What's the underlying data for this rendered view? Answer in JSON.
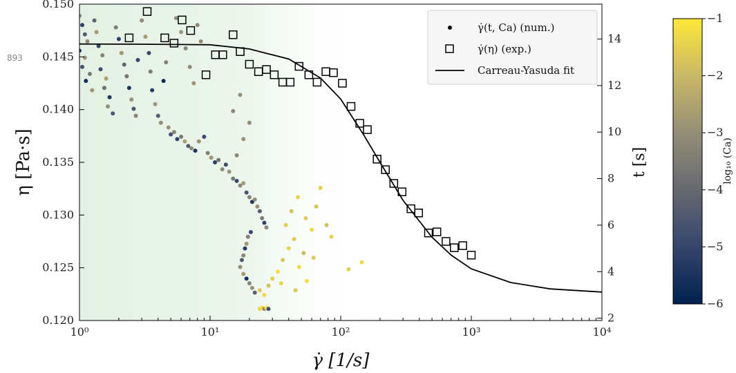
{
  "margin_label": "893",
  "chart_data": {
    "type": "scatter",
    "x_axis": {
      "label": "γ̇ [1/s]",
      "scale": "log",
      "range": [
        1,
        10000
      ],
      "ticks": [
        1,
        10,
        100,
        1000,
        10000
      ],
      "tick_labels": [
        "10⁰",
        "10¹",
        "10²",
        "10³",
        "10⁴"
      ]
    },
    "y_axis": {
      "label": "η [Pa·s]",
      "range": [
        0.12,
        0.15
      ],
      "ticks": [
        0.12,
        0.125,
        0.13,
        0.135,
        0.14,
        0.145,
        0.15
      ],
      "tick_labels": [
        "0.120",
        "0.125",
        "0.130",
        "0.135",
        "0.140",
        "0.145",
        "0.150"
      ]
    },
    "y2_axis": {
      "label": "t [s]",
      "range": [
        1.9,
        15.5
      ],
      "ticks": [
        2,
        4,
        6,
        8,
        10,
        12,
        14
      ],
      "tick_labels": [
        "2",
        "4",
        "6",
        "8",
        "10",
        "12",
        "14"
      ]
    },
    "colorbar": {
      "label": "log₁₀ (Ca)",
      "range": [
        -6,
        -1
      ],
      "ticks": [
        -6,
        -5,
        -4,
        -3,
        -2,
        -1
      ],
      "tick_labels": [
        "−6",
        "−5",
        "−4",
        "−3",
        "−2",
        "−1"
      ],
      "colors": [
        "#00224e",
        "#35456c",
        "#666970",
        "#948e77",
        "#c8b866",
        "#fee838"
      ]
    },
    "legend": {
      "position": "top-right",
      "entries": [
        {
          "marker": "dot",
          "label": "γ̇(t, Ca) (num.)"
        },
        {
          "marker": "square",
          "label": "γ̇(η) (exp.)"
        },
        {
          "marker": "line",
          "label": "Carreau-Yasuda fit"
        }
      ]
    },
    "shaded_region": {
      "x_range": [
        1,
        150
      ],
      "color": "#e6f3e6"
    },
    "series": [
      {
        "name": "γ̇(η) (exp.)",
        "kind": "square",
        "axis": "left",
        "points": [
          [
            2.4,
            0.1468
          ],
          [
            3.3,
            0.1493
          ],
          [
            4.5,
            0.1468
          ],
          [
            5.3,
            0.1463
          ],
          [
            6.1,
            0.1485
          ],
          [
            7.1,
            0.1475
          ],
          [
            9.3,
            0.1433
          ],
          [
            11,
            0.1452
          ],
          [
            12.5,
            0.1452
          ],
          [
            15,
            0.1471
          ],
          [
            17,
            0.1455
          ],
          [
            20,
            0.1443
          ],
          [
            23.5,
            0.1436
          ],
          [
            27,
            0.1438
          ],
          [
            31,
            0.1433
          ],
          [
            36,
            0.1426
          ],
          [
            41,
            0.1426
          ],
          [
            48,
            0.1441
          ],
          [
            57,
            0.1433
          ],
          [
            66,
            0.1426
          ],
          [
            77,
            0.1436
          ],
          [
            88,
            0.1435
          ],
          [
            103,
            0.1425
          ],
          [
            120,
            0.1403
          ],
          [
            140,
            0.1387
          ],
          [
            160,
            0.1381
          ],
          [
            190,
            0.1353
          ],
          [
            220,
            0.1343
          ],
          [
            255,
            0.133
          ],
          [
            295,
            0.1322
          ],
          [
            345,
            0.1306
          ],
          [
            395,
            0.1302
          ],
          [
            470,
            0.1283
          ],
          [
            545,
            0.1284
          ],
          [
            640,
            0.1275
          ],
          [
            740,
            0.1269
          ],
          [
            860,
            0.1271
          ],
          [
            1000,
            0.1262
          ]
        ]
      },
      {
        "name": "Carreau-Yasuda fit",
        "kind": "line",
        "axis": "left",
        "points": [
          [
            1,
            0.14622
          ],
          [
            3,
            0.1462
          ],
          [
            10,
            0.14615
          ],
          [
            20,
            0.14575
          ],
          [
            40,
            0.1448
          ],
          [
            70,
            0.143
          ],
          [
            100,
            0.141
          ],
          [
            150,
            0.1376
          ],
          [
            200,
            0.135
          ],
          [
            300,
            0.1314
          ],
          [
            500,
            0.1279
          ],
          [
            700,
            0.1262
          ],
          [
            1000,
            0.1249
          ],
          [
            2000,
            0.1236
          ],
          [
            4000,
            0.123
          ],
          [
            10000,
            0.1227
          ]
        ]
      },
      {
        "name": "γ̇(t, Ca) (num.)",
        "kind": "dot",
        "axis": "right",
        "points": [
          [
            1.0,
            15.0,
            -3.2
          ],
          [
            1.05,
            14.6,
            -5.1
          ],
          [
            1.1,
            14.2,
            -4.4
          ],
          [
            1.15,
            13.9,
            -3.1
          ],
          [
            1.0,
            13.5,
            -5.3
          ],
          [
            1.1,
            13.2,
            -2.9
          ],
          [
            1.05,
            12.8,
            -4.7
          ],
          [
            1.2,
            12.5,
            -3.6
          ],
          [
            1.12,
            12.2,
            -5.6
          ],
          [
            1.25,
            11.8,
            -2.8
          ],
          [
            1.3,
            14.8,
            -4.2
          ],
          [
            1.35,
            14.3,
            -2.7
          ],
          [
            1.4,
            13.7,
            -5.0
          ],
          [
            1.5,
            13.3,
            -3.3
          ],
          [
            1.45,
            12.7,
            -4.8
          ],
          [
            1.6,
            12.3,
            -2.6
          ],
          [
            1.55,
            11.9,
            -3.9
          ],
          [
            1.7,
            11.5,
            -5.4
          ],
          [
            1.65,
            11.1,
            -3.0
          ],
          [
            1.8,
            10.8,
            -4.5
          ],
          [
            1.9,
            14.5,
            -3.4
          ],
          [
            2.0,
            14.0,
            -5.2
          ],
          [
            2.1,
            13.4,
            -2.8
          ],
          [
            2.2,
            12.9,
            -4.1
          ],
          [
            2.3,
            12.4,
            -3.7
          ],
          [
            2.4,
            11.9,
            -5.5
          ],
          [
            2.5,
            11.4,
            -2.9
          ],
          [
            2.6,
            11.0,
            -4.6
          ],
          [
            2.7,
            10.7,
            -3.2
          ],
          [
            2.8,
            13.1,
            -5.0
          ],
          [
            3.0,
            14.8,
            -3.1
          ],
          [
            3.2,
            14.1,
            -2.7
          ],
          [
            3.4,
            13.4,
            -4.9
          ],
          [
            3.5,
            12.6,
            -3.5
          ],
          [
            3.6,
            11.8,
            -5.3
          ],
          [
            3.8,
            11.2,
            -2.8
          ],
          [
            4.0,
            10.7,
            -4.3
          ],
          [
            4.2,
            10.4,
            -3.0
          ],
          [
            4.4,
            12.2,
            -5.7
          ],
          [
            4.6,
            13.0,
            -3.4
          ],
          [
            4.8,
            10.2,
            -2.9
          ],
          [
            5.0,
            9.9,
            -4.7
          ],
          [
            5.3,
            10.0,
            -3.3
          ],
          [
            5.6,
            9.7,
            -5.1
          ],
          [
            6.0,
            9.8,
            -3.6
          ],
          [
            6.4,
            9.6,
            -2.6
          ],
          [
            6.8,
            9.4,
            -4.4
          ],
          [
            7.2,
            9.3,
            -3.2
          ],
          [
            7.7,
            9.2,
            -5.5
          ],
          [
            8.2,
            9.6,
            -2.9
          ],
          [
            5.5,
            14.9,
            -3.0
          ],
          [
            6.0,
            14.3,
            -2.8
          ],
          [
            6.5,
            13.6,
            -3.3
          ],
          [
            7.0,
            12.8,
            -3.1
          ],
          [
            7.5,
            12.1,
            -2.9
          ],
          [
            8.0,
            14.6,
            -3.2
          ],
          [
            8.5,
            13.9,
            -3.0
          ],
          [
            9.0,
            9.8,
            -4.9
          ],
          [
            9.6,
            9.1,
            -3.4
          ],
          [
            10.2,
            8.9,
            -2.8
          ],
          [
            10.9,
            8.7,
            -5.2
          ],
          [
            11.6,
            8.8,
            -3.7
          ],
          [
            12.4,
            8.4,
            -3.1
          ],
          [
            13.2,
            8.6,
            -4.8
          ],
          [
            14.0,
            8.3,
            -2.9
          ],
          [
            15.0,
            8.0,
            -3.6
          ],
          [
            16.0,
            7.9,
            -5.0
          ],
          [
            17.0,
            7.7,
            -3.2
          ],
          [
            18.0,
            7.8,
            -2.7
          ],
          [
            19.0,
            7.4,
            -4.6
          ],
          [
            20.0,
            7.2,
            -3.3
          ],
          [
            21.0,
            7.0,
            -5.4
          ],
          [
            22.0,
            7.1,
            -3.0
          ],
          [
            23.0,
            6.8,
            -2.9
          ],
          [
            24.0,
            6.6,
            -4.3
          ],
          [
            25.0,
            6.3,
            -3.5
          ],
          [
            26.0,
            6.1,
            -5.1
          ],
          [
            27.0,
            5.9,
            -3.1
          ],
          [
            20.5,
            5.7,
            -4.9
          ],
          [
            19.5,
            5.5,
            -3.4
          ],
          [
            19.0,
            5.2,
            -2.8
          ],
          [
            18.5,
            5.0,
            -5.3
          ],
          [
            18.0,
            4.7,
            -3.2
          ],
          [
            17.5,
            4.5,
            -4.5
          ],
          [
            17.0,
            4.2,
            -3.0
          ],
          [
            18.0,
            3.9,
            -2.7
          ],
          [
            19.0,
            3.7,
            -5.6
          ],
          [
            20.0,
            3.5,
            -3.3
          ],
          [
            21.0,
            3.3,
            -2.9
          ],
          [
            22.0,
            3.1,
            -4.2
          ],
          [
            20.0,
            10.4,
            -3.0
          ],
          [
            18.0,
            9.7,
            -2.9
          ],
          [
            16.0,
            9.0,
            -3.1
          ],
          [
            15.0,
            10.9,
            -3.2
          ],
          [
            17.0,
            11.6,
            -3.0
          ],
          [
            24.0,
            2.4,
            -1.4
          ],
          [
            25.0,
            2.45,
            -1.2
          ],
          [
            26.0,
            2.4,
            -3.1
          ],
          [
            27.0,
            2.45,
            -1.1
          ],
          [
            28.0,
            2.4,
            -4.8
          ],
          [
            24.0,
            3.2,
            -1.6
          ],
          [
            26.0,
            3.0,
            -1.3
          ],
          [
            28.0,
            3.4,
            -1.8
          ],
          [
            30.0,
            3.7,
            -1.5
          ],
          [
            33.0,
            4.0,
            -1.2
          ],
          [
            36.0,
            4.5,
            -1.7
          ],
          [
            40.0,
            5.0,
            -1.4
          ],
          [
            44.0,
            5.4,
            -1.6
          ],
          [
            48.0,
            4.2,
            -1.3
          ],
          [
            52.0,
            4.8,
            -1.9
          ],
          [
            38.0,
            6.0,
            -1.5
          ],
          [
            42.0,
            6.6,
            -1.8
          ],
          [
            47.0,
            7.2,
            -1.4
          ],
          [
            54.0,
            6.3,
            -1.6
          ],
          [
            60.0,
            5.8,
            -1.3
          ],
          [
            65.0,
            6.8,
            -1.7
          ],
          [
            70.0,
            7.6,
            -1.5
          ],
          [
            78.0,
            6.0,
            -1.8
          ],
          [
            85.0,
            5.5,
            -1.4
          ],
          [
            62.0,
            4.6,
            -1.6
          ],
          [
            115.0,
            4.1,
            -1.5
          ],
          [
            145.0,
            4.4,
            -1.3
          ],
          [
            55.0,
            3.6,
            -1.2
          ],
          [
            45.0,
            3.2,
            -1.6
          ],
          [
            35.0,
            3.5,
            -1.4
          ]
        ]
      }
    ]
  }
}
